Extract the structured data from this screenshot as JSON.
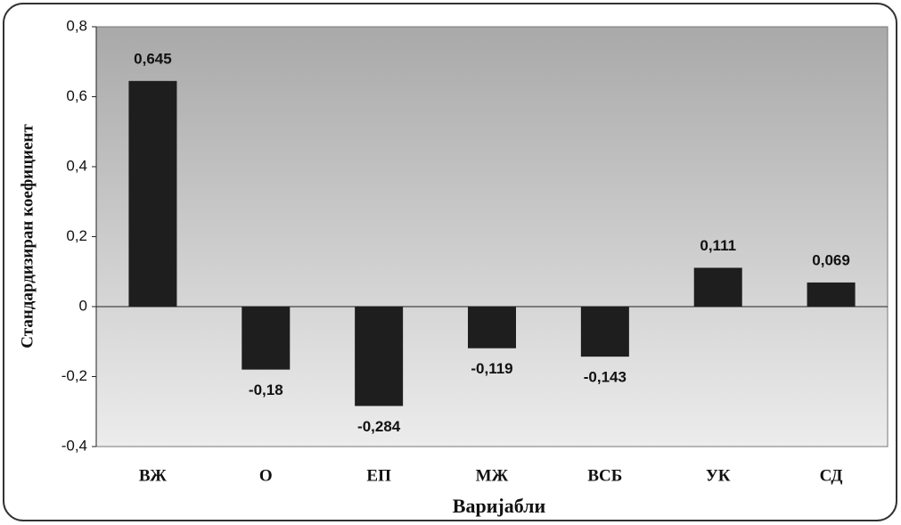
{
  "chart_data": {
    "type": "bar",
    "ylabel": "Стандардизиран коефициент",
    "xlabel": "Варијабли",
    "categories": [
      "ВЖ",
      "О",
      "ЕП",
      "МЖ",
      "ВСБ",
      "УК",
      "СД"
    ],
    "values": [
      0.645,
      -0.18,
      -0.284,
      -0.119,
      -0.143,
      0.111,
      0.069
    ],
    "value_labels": [
      "0,645",
      "-0,18",
      "-0,284",
      "-0,119",
      "-0,143",
      "0,111",
      "0,069"
    ],
    "color": "#1e1e1e",
    "ylim": [
      -0.4,
      0.8
    ],
    "yticks": [
      {
        "value": -0.4,
        "label": "-0,4"
      },
      {
        "value": -0.2,
        "label": "-0,2"
      },
      0,
      {
        "value": 0.2,
        "label": "0,2"
      },
      {
        "value": 0.4,
        "label": "0,4"
      },
      {
        "value": 0.6,
        "label": "0,6"
      },
      {
        "value": 0.8,
        "label": "0,8"
      }
    ]
  }
}
